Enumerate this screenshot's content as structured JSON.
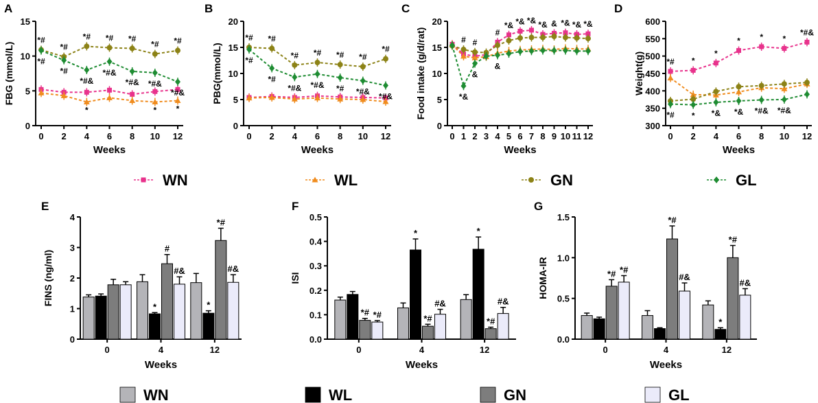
{
  "chart_data": [
    {
      "panel": "A",
      "type": "line",
      "ylabel": "FBG (mmol/L)",
      "xlabel": "Weeks",
      "x": [
        0,
        2,
        4,
        6,
        8,
        10,
        12
      ],
      "ylim": [
        0,
        15
      ],
      "yticks": [
        0,
        5,
        10,
        15
      ],
      "series": [
        {
          "name": "WN",
          "values": [
            5.2,
            4.8,
            4.8,
            5.1,
            4.5,
            4.9,
            5.2
          ]
        },
        {
          "name": "WL",
          "values": [
            4.7,
            4.3,
            3.4,
            4.0,
            3.6,
            3.4,
            3.6
          ]
        },
        {
          "name": "GN",
          "values": [
            10.9,
            9.9,
            11.4,
            11.2,
            11.1,
            10.3,
            10.8
          ]
        },
        {
          "name": "GL",
          "values": [
            10.8,
            9.4,
            8.0,
            9.2,
            7.8,
            7.6,
            6.3
          ]
        }
      ],
      "annotations": [
        {
          "x": 0,
          "text": "*#"
        },
        {
          "x": 0,
          "text": "*#"
        },
        {
          "x": 2,
          "text": "*#"
        },
        {
          "x": 2,
          "text": "*#"
        },
        {
          "x": 4,
          "text": "*#"
        },
        {
          "x": 4,
          "text": "*#&"
        },
        {
          "x": 4,
          "text": "*"
        },
        {
          "x": 6,
          "text": "*#"
        },
        {
          "x": 6,
          "text": "*#&"
        },
        {
          "x": 8,
          "text": "*#"
        },
        {
          "x": 8,
          "text": "*#&"
        },
        {
          "x": 10,
          "text": "*#"
        },
        {
          "x": 10,
          "text": "*#&"
        },
        {
          "x": 10,
          "text": "*"
        },
        {
          "x": 12,
          "text": "*#"
        },
        {
          "x": 12,
          "text": "*#&"
        },
        {
          "x": 12,
          "text": "*"
        }
      ]
    },
    {
      "panel": "B",
      "type": "line",
      "ylabel": "PBG(mmol/L)",
      "xlabel": "Weeks",
      "x": [
        0,
        2,
        4,
        6,
        8,
        10,
        12
      ],
      "ylim": [
        0,
        20
      ],
      "yticks": [
        0,
        5,
        10,
        15,
        20
      ],
      "series": [
        {
          "name": "WN",
          "values": [
            5.4,
            5.6,
            5.4,
            5.7,
            5.5,
            5.4,
            5.3
          ]
        },
        {
          "name": "WL",
          "values": [
            5.3,
            5.4,
            5.1,
            5.3,
            5.1,
            5.0,
            4.6
          ]
        },
        {
          "name": "GN",
          "values": [
            15.0,
            14.8,
            11.6,
            12.1,
            11.7,
            11.3,
            12.8
          ]
        },
        {
          "name": "GL",
          "values": [
            14.6,
            11.0,
            9.3,
            9.9,
            9.2,
            8.6,
            7.7
          ]
        }
      ],
      "annotations": [
        {
          "x": 0,
          "text": "*#"
        },
        {
          "x": 0,
          "text": "*#"
        },
        {
          "x": 2,
          "text": "*#"
        },
        {
          "x": 2,
          "text": "*#"
        },
        {
          "x": 4,
          "text": "*#"
        },
        {
          "x": 4,
          "text": "*#&"
        },
        {
          "x": 6,
          "text": "*#"
        },
        {
          "x": 6,
          "text": "*#&"
        },
        {
          "x": 8,
          "text": "*#"
        },
        {
          "x": 8,
          "text": "*#"
        },
        {
          "x": 10,
          "text": "*#"
        },
        {
          "x": 10,
          "text": "*#&"
        },
        {
          "x": 12,
          "text": "*#"
        },
        {
          "x": 12,
          "text": "*#&"
        }
      ]
    },
    {
      "panel": "C",
      "type": "line",
      "ylabel": "Food intake (g/d/rat)",
      "xlabel": "Weeks",
      "x": [
        0,
        1,
        2,
        3,
        4,
        5,
        6,
        7,
        8,
        9,
        10,
        11,
        12
      ],
      "ylim": [
        0,
        20
      ],
      "yticks": [
        0,
        5,
        10,
        15,
        20
      ],
      "series": [
        {
          "name": "WN",
          "values": [
            15.6,
            13.7,
            13.3,
            13.6,
            16.0,
            17.4,
            18.1,
            18.3,
            17.5,
            17.7,
            17.8,
            17.5,
            17.6
          ]
        },
        {
          "name": "WL",
          "values": [
            15.5,
            13.3,
            13.0,
            13.2,
            13.9,
            14.3,
            14.5,
            14.6,
            14.7,
            14.6,
            14.8,
            14.7,
            14.7
          ]
        },
        {
          "name": "GN",
          "values": [
            15.3,
            14.6,
            14.1,
            14.0,
            15.4,
            16.3,
            16.8,
            16.9,
            16.9,
            17.1,
            16.9,
            16.8,
            16.7
          ]
        },
        {
          "name": "GL",
          "values": [
            15.4,
            7.6,
            11.9,
            13.3,
            13.5,
            13.8,
            14.2,
            14.3,
            14.4,
            14.4,
            14.4,
            14.3,
            14.3
          ]
        }
      ],
      "annotations": [
        {
          "x": 1,
          "text": "#"
        },
        {
          "x": 1,
          "text": "*&"
        },
        {
          "x": 2,
          "text": "#"
        },
        {
          "x": 2,
          "text": "&"
        },
        {
          "x": 4,
          "text": "#"
        },
        {
          "x": 4,
          "text": "&"
        },
        {
          "x": 5,
          "text": "*&"
        },
        {
          "x": 6,
          "text": "*&"
        },
        {
          "x": 7,
          "text": "*&"
        },
        {
          "x": 8,
          "text": "*&"
        },
        {
          "x": 9,
          "text": "&"
        },
        {
          "x": 10,
          "text": "*&"
        },
        {
          "x": 11,
          "text": "*&"
        },
        {
          "x": 12,
          "text": "*&"
        }
      ]
    },
    {
      "panel": "D",
      "type": "line",
      "ylabel": "Weight(g)",
      "xlabel": "Weeks",
      "x": [
        0,
        2,
        4,
        6,
        8,
        10,
        12
      ],
      "ylim": [
        300,
        600
      ],
      "yticks": [
        300,
        350,
        400,
        450,
        500,
        550,
        600
      ],
      "series": [
        {
          "name": "WN",
          "values": [
            456,
            459,
            480,
            516,
            527,
            522,
            540
          ]
        },
        {
          "name": "WL",
          "values": [
            437,
            389,
            388,
            397,
            409,
            406,
            420
          ]
        },
        {
          "name": "GN",
          "values": [
            371,
            376,
            398,
            412,
            415,
            420,
            424
          ]
        },
        {
          "name": "GL",
          "values": [
            362,
            360,
            367,
            371,
            374,
            375,
            390
          ]
        }
      ],
      "annotations": [
        {
          "x": 0,
          "text": "*#"
        },
        {
          "x": 0,
          "text": "*#"
        },
        {
          "x": 2,
          "text": "*"
        },
        {
          "x": 2,
          "text": "*"
        },
        {
          "x": 4,
          "text": "*"
        },
        {
          "x": 4,
          "text": "*&"
        },
        {
          "x": 6,
          "text": "*"
        },
        {
          "x": 6,
          "text": "*&"
        },
        {
          "x": 8,
          "text": "*"
        },
        {
          "x": 8,
          "text": "*#&"
        },
        {
          "x": 10,
          "text": "*"
        },
        {
          "x": 10,
          "text": "*#&"
        },
        {
          "x": 12,
          "text": "*#&"
        }
      ]
    },
    {
      "panel": "E",
      "type": "bar",
      "ylabel": "FINS (ng/ml)",
      "xlabel": "Weeks",
      "categories": [
        "0",
        "4",
        "12"
      ],
      "ylim": [
        0,
        4
      ],
      "yticks": [
        0,
        1,
        2,
        3,
        4
      ],
      "series": [
        {
          "name": "WN",
          "values": [
            1.38,
            1.88,
            1.85
          ],
          "errors": [
            0.07,
            0.23,
            0.3
          ]
        },
        {
          "name": "WL",
          "values": [
            1.41,
            0.83,
            0.85
          ],
          "errors": [
            0.07,
            0.04,
            0.08
          ]
        },
        {
          "name": "GN",
          "values": [
            1.78,
            2.47,
            3.23
          ],
          "errors": [
            0.18,
            0.3,
            0.4
          ]
        },
        {
          "name": "GL",
          "values": [
            1.78,
            1.8,
            1.86
          ],
          "errors": [
            0.1,
            0.24,
            0.25
          ]
        }
      ],
      "labels": [
        [
          "",
          "",
          "",
          ""
        ],
        [
          "",
          "*",
          "#",
          "#&"
        ],
        [
          "",
          "*",
          "*#",
          "#&"
        ]
      ]
    },
    {
      "panel": "F",
      "type": "bar",
      "ylabel": "ISI",
      "xlabel": "Weeks",
      "categories": [
        "0",
        "4",
        "12"
      ],
      "ylim": [
        0,
        0.5
      ],
      "yticks": [
        0.0,
        0.1,
        0.2,
        0.3,
        0.4,
        0.5
      ],
      "series": [
        {
          "name": "WN",
          "values": [
            0.16,
            0.128,
            0.162
          ],
          "errors": [
            0.012,
            0.02,
            0.02
          ]
        },
        {
          "name": "WL",
          "values": [
            0.183,
            0.365,
            0.368
          ],
          "errors": [
            0.012,
            0.045,
            0.05
          ]
        },
        {
          "name": "GN",
          "values": [
            0.077,
            0.053,
            0.043
          ],
          "errors": [
            0.008,
            0.008,
            0.006
          ]
        },
        {
          "name": "GL",
          "values": [
            0.07,
            0.102,
            0.105
          ],
          "errors": [
            0.006,
            0.02,
            0.025
          ]
        }
      ],
      "labels": [
        [
          "",
          "",
          "*#",
          "*#"
        ],
        [
          "",
          "*",
          "*#",
          "#&"
        ],
        [
          "",
          "*",
          "*#",
          "#&"
        ]
      ]
    },
    {
      "panel": "G",
      "type": "bar",
      "ylabel": "HOMA-IR",
      "xlabel": "Weeks",
      "categories": [
        "0",
        "4",
        "12"
      ],
      "ylim": [
        0,
        1.5
      ],
      "yticks": [
        0.0,
        0.5,
        1.0,
        1.5
      ],
      "series": [
        {
          "name": "WN",
          "values": [
            0.29,
            0.29,
            0.42
          ],
          "errors": [
            0.03,
            0.06,
            0.05
          ]
        },
        {
          "name": "WL",
          "values": [
            0.25,
            0.13,
            0.12
          ],
          "errors": [
            0.02,
            0.01,
            0.02
          ]
        },
        {
          "name": "GN",
          "values": [
            0.65,
            1.23,
            1.0
          ],
          "errors": [
            0.08,
            0.16,
            0.15
          ]
        },
        {
          "name": "GL",
          "values": [
            0.7,
            0.59,
            0.54
          ],
          "errors": [
            0.08,
            0.1,
            0.08
          ]
        }
      ],
      "labels": [
        [
          "",
          "",
          "*#",
          "*#"
        ],
        [
          "",
          "",
          "*#",
          "#&"
        ],
        [
          "",
          "*",
          "*#",
          "#&"
        ]
      ]
    }
  ],
  "legend_lines": [
    {
      "name": "WN",
      "color": "#e8328c"
    },
    {
      "name": "WL",
      "color": "#f08c1e"
    },
    {
      "name": "GN",
      "color": "#8c8216"
    },
    {
      "name": "GL",
      "color": "#1e8c32"
    }
  ],
  "legend_bars": [
    {
      "name": "WN",
      "color": "#b4b4b8"
    },
    {
      "name": "WL",
      "color": "#000000"
    },
    {
      "name": "GN",
      "color": "#7d7d7d"
    },
    {
      "name": "GL",
      "color": "#ebebfa"
    }
  ]
}
